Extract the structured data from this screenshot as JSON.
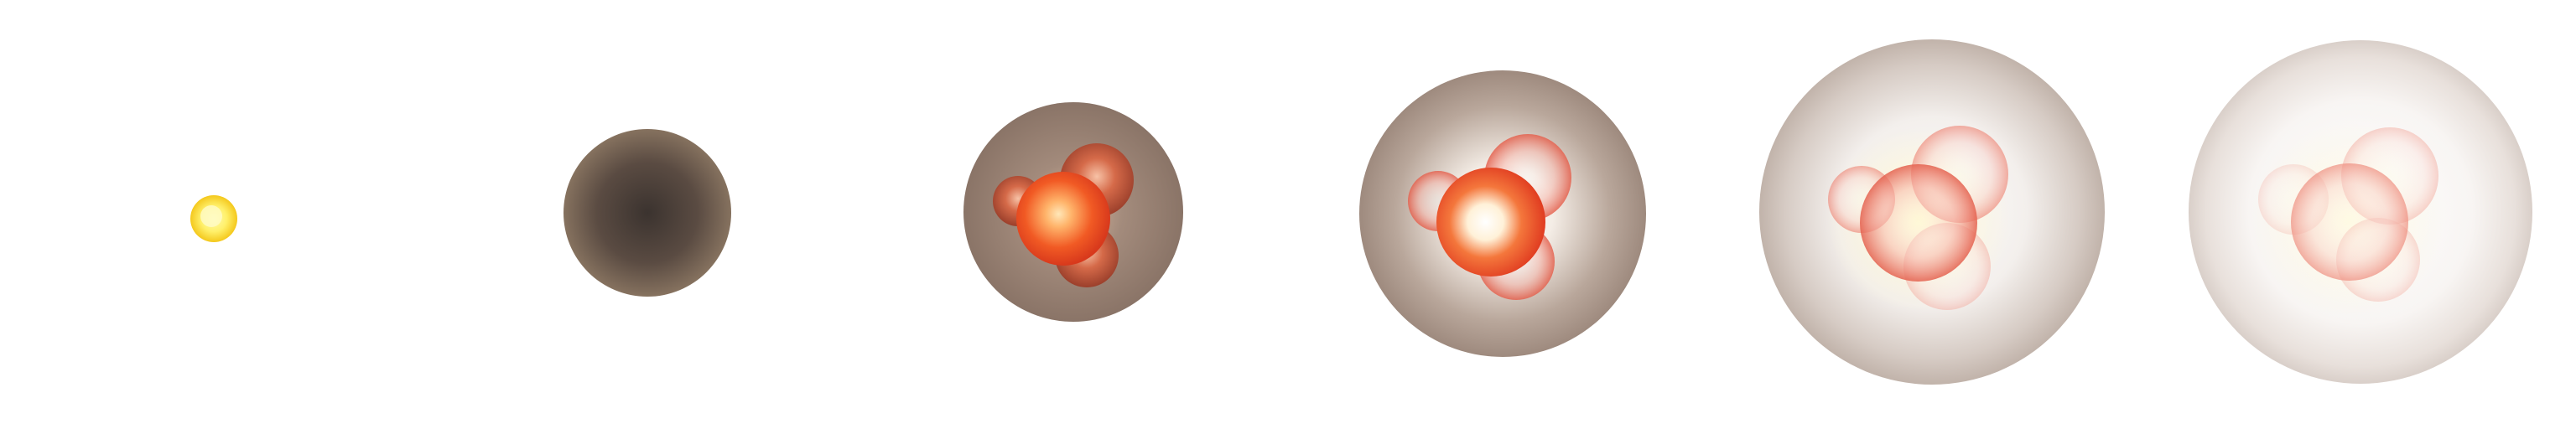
{
  "frames": [
    {
      "name": "seed",
      "description_colors": {
        "core": "#fff38a",
        "rim": "#f6d21c"
      }
    },
    {
      "name": "dark-sphere",
      "description_colors": {
        "center": "#3f3732",
        "edge": "#7f6b5f"
      }
    },
    {
      "name": "forming-sphere",
      "description_colors": {
        "shell": "#8c7669",
        "core": "#f05a22"
      }
    },
    {
      "name": "glowing-sphere",
      "description_colors": {
        "shell": "#a18e82",
        "core": "#ea4b20"
      }
    },
    {
      "name": "fading-sphere",
      "description_colors": {
        "shell": "#c9bdb6",
        "core": "#f26b5a"
      }
    },
    {
      "name": "faded-sphere",
      "description_colors": {
        "shell": "#ddd4cf",
        "core": "#f4a49a"
      }
    }
  ]
}
